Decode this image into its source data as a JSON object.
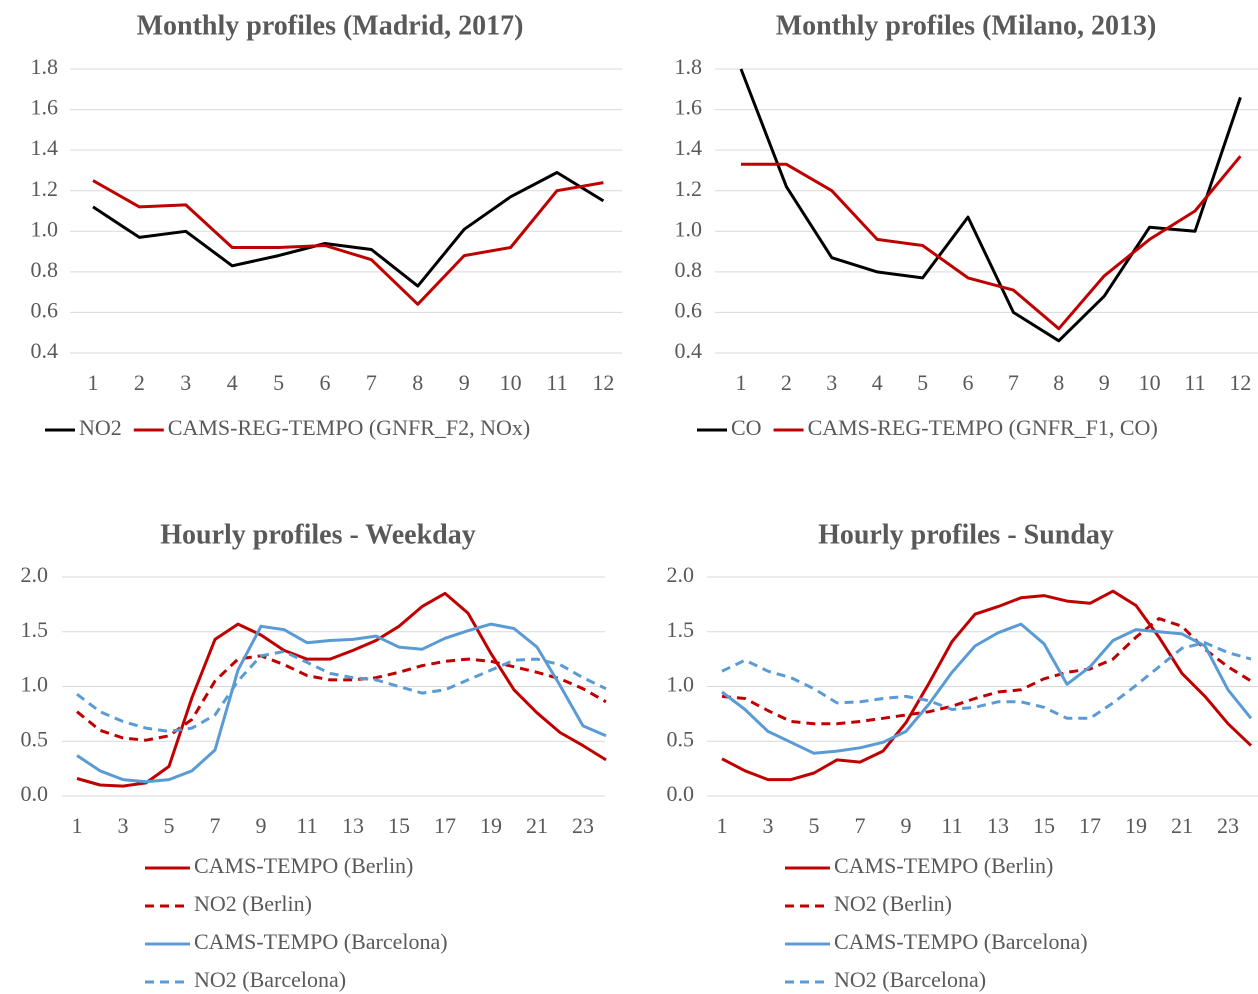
{
  "chart_data": [
    {
      "type": "line",
      "title": "Monthly profiles (Madrid, 2017)",
      "categories": [
        1,
        2,
        3,
        4,
        5,
        6,
        7,
        8,
        9,
        10,
        11,
        12
      ],
      "ylim": [
        0.4,
        1.8
      ],
      "yticks": [
        0.4,
        0.6,
        0.8,
        {
          "value": 1,
          "label": "1.0"
        },
        1.2,
        1.4,
        1.6,
        1.8
      ],
      "grid": true,
      "legend": "bottom",
      "series": [
        {
          "name": "NO2",
          "color": "#000000",
          "dash": false,
          "values": [
            1.12,
            0.97,
            1.0,
            0.83,
            0.88,
            0.94,
            0.91,
            0.73,
            1.01,
            1.17,
            1.29,
            1.15
          ]
        },
        {
          "name": "CAMS-REG-TEMPO (GNFR_F2, NOx)",
          "color": "#c00000",
          "dash": false,
          "values": [
            1.25,
            1.12,
            1.13,
            0.92,
            0.92,
            0.93,
            0.86,
            0.64,
            0.88,
            0.92,
            1.2,
            1.24
          ]
        }
      ]
    },
    {
      "type": "line",
      "title": "Monthly profiles (Milano, 2013)",
      "categories": [
        1,
        2,
        3,
        4,
        5,
        6,
        7,
        8,
        9,
        10,
        11,
        12
      ],
      "ylim": [
        0.4,
        1.8
      ],
      "yticks": [
        0.4,
        0.6,
        0.8,
        {
          "value": 1,
          "label": "1.0"
        },
        1.2,
        1.4,
        1.6,
        1.8
      ],
      "grid": true,
      "legend": "bottom",
      "series": [
        {
          "name": "CO",
          "color": "#000000",
          "dash": false,
          "values": [
            1.8,
            1.22,
            0.87,
            0.8,
            0.77,
            1.07,
            0.6,
            0.46,
            0.68,
            1.02,
            1.0,
            1.66
          ]
        },
        {
          "name": "CAMS-REG-TEMPO (GNFR_F1, CO)",
          "color": "#c00000",
          "dash": false,
          "values": [
            1.33,
            1.33,
            1.2,
            0.96,
            0.93,
            0.77,
            0.71,
            0.52,
            0.78,
            0.96,
            1.1,
            1.37
          ]
        }
      ]
    },
    {
      "type": "line",
      "title": "Hourly profiles - Weekday",
      "categories": [
        1,
        null,
        3,
        null,
        5,
        null,
        7,
        null,
        9,
        null,
        11,
        null,
        13,
        null,
        15,
        null,
        17,
        null,
        19,
        null,
        21,
        null,
        23,
        null
      ],
      "ylim": [
        0,
        2
      ],
      "yticks": [
        {
          "value": 0,
          "label": "0.0"
        },
        0.5,
        {
          "value": 1,
          "label": "1.0"
        },
        1.5,
        {
          "value": 2,
          "label": "2.0"
        }
      ],
      "grid": true,
      "legend": "bottom",
      "series": [
        {
          "name": "CAMS-TEMPO (Berlin)",
          "color": "#c00000",
          "dash": false,
          "values": [
            0.16,
            0.1,
            0.09,
            0.12,
            0.27,
            0.9,
            1.43,
            1.57,
            1.47,
            1.33,
            1.25,
            1.25,
            1.33,
            1.42,
            1.55,
            1.73,
            1.85,
            1.67,
            1.3,
            0.97,
            0.76,
            0.58,
            0.46,
            0.33
          ]
        },
        {
          "name": "NO2 (Berlin)",
          "color": "#c00000",
          "dash": true,
          "values": [
            0.77,
            0.6,
            0.53,
            0.51,
            0.55,
            0.7,
            1.05,
            1.25,
            1.28,
            1.2,
            1.1,
            1.06,
            1.06,
            1.08,
            1.13,
            1.19,
            1.23,
            1.25,
            1.23,
            1.18,
            1.13,
            1.07,
            0.98,
            0.86
          ]
        },
        {
          "name": "CAMS-TEMPO (Barcelona)",
          "color": "#5b9bd5",
          "dash": false,
          "values": [
            0.37,
            0.23,
            0.15,
            0.13,
            0.15,
            0.23,
            0.42,
            1.15,
            1.55,
            1.52,
            1.4,
            1.42,
            1.43,
            1.46,
            1.36,
            1.34,
            1.44,
            1.51,
            1.57,
            1.53,
            1.36,
            1.01,
            0.64,
            0.55
          ]
        },
        {
          "name": "NO2 (Barcelona)",
          "color": "#5b9bd5",
          "dash": true,
          "values": [
            0.93,
            0.77,
            0.68,
            0.62,
            0.59,
            0.62,
            0.74,
            1.05,
            1.28,
            1.32,
            1.22,
            1.12,
            1.08,
            1.06,
            1.0,
            0.94,
            0.97,
            1.06,
            1.15,
            1.24,
            1.25,
            1.2,
            1.08,
            0.98
          ]
        }
      ]
    },
    {
      "type": "line",
      "title": "Hourly profiles - Sunday",
      "categories": [
        1,
        null,
        3,
        null,
        5,
        null,
        7,
        null,
        9,
        null,
        11,
        null,
        13,
        null,
        15,
        null,
        17,
        null,
        19,
        null,
        21,
        null,
        23,
        null
      ],
      "ylim": [
        0,
        2
      ],
      "yticks": [
        {
          "value": 0,
          "label": "0.0"
        },
        0.5,
        {
          "value": 1,
          "label": "1.0"
        },
        1.5,
        {
          "value": 2,
          "label": "2.0"
        }
      ],
      "grid": true,
      "legend": "bottom",
      "series": [
        {
          "name": "CAMS-TEMPO (Berlin)",
          "color": "#c00000",
          "dash": false,
          "values": [
            0.34,
            0.23,
            0.15,
            0.15,
            0.21,
            0.33,
            0.31,
            0.41,
            0.67,
            1.03,
            1.41,
            1.66,
            1.73,
            1.81,
            1.83,
            1.78,
            1.76,
            1.87,
            1.74,
            1.45,
            1.12,
            0.91,
            0.66,
            0.46
          ]
        },
        {
          "name": "NO2 (Berlin)",
          "color": "#c00000",
          "dash": true,
          "values": [
            0.91,
            0.89,
            0.78,
            0.68,
            0.66,
            0.66,
            0.68,
            0.71,
            0.74,
            0.77,
            0.82,
            0.89,
            0.95,
            0.97,
            1.07,
            1.13,
            1.16,
            1.25,
            1.45,
            1.62,
            1.55,
            1.34,
            1.18,
            1.05
          ]
        },
        {
          "name": "CAMS-TEMPO (Barcelona)",
          "color": "#5b9bd5",
          "dash": false,
          "values": [
            0.95,
            0.79,
            0.59,
            0.49,
            0.39,
            0.41,
            0.44,
            0.49,
            0.59,
            0.84,
            1.13,
            1.37,
            1.49,
            1.57,
            1.39,
            1.02,
            1.18,
            1.42,
            1.52,
            1.5,
            1.48,
            1.37,
            0.97,
            0.71
          ]
        },
        {
          "name": "NO2 (Barcelona)",
          "color": "#5b9bd5",
          "dash": true,
          "values": [
            1.14,
            1.24,
            1.14,
            1.08,
            0.98,
            0.85,
            0.86,
            0.89,
            0.91,
            0.87,
            0.79,
            0.81,
            0.86,
            0.86,
            0.81,
            0.71,
            0.71,
            0.85,
            1.01,
            1.18,
            1.35,
            1.4,
            1.31,
            1.25
          ]
        }
      ]
    }
  ]
}
